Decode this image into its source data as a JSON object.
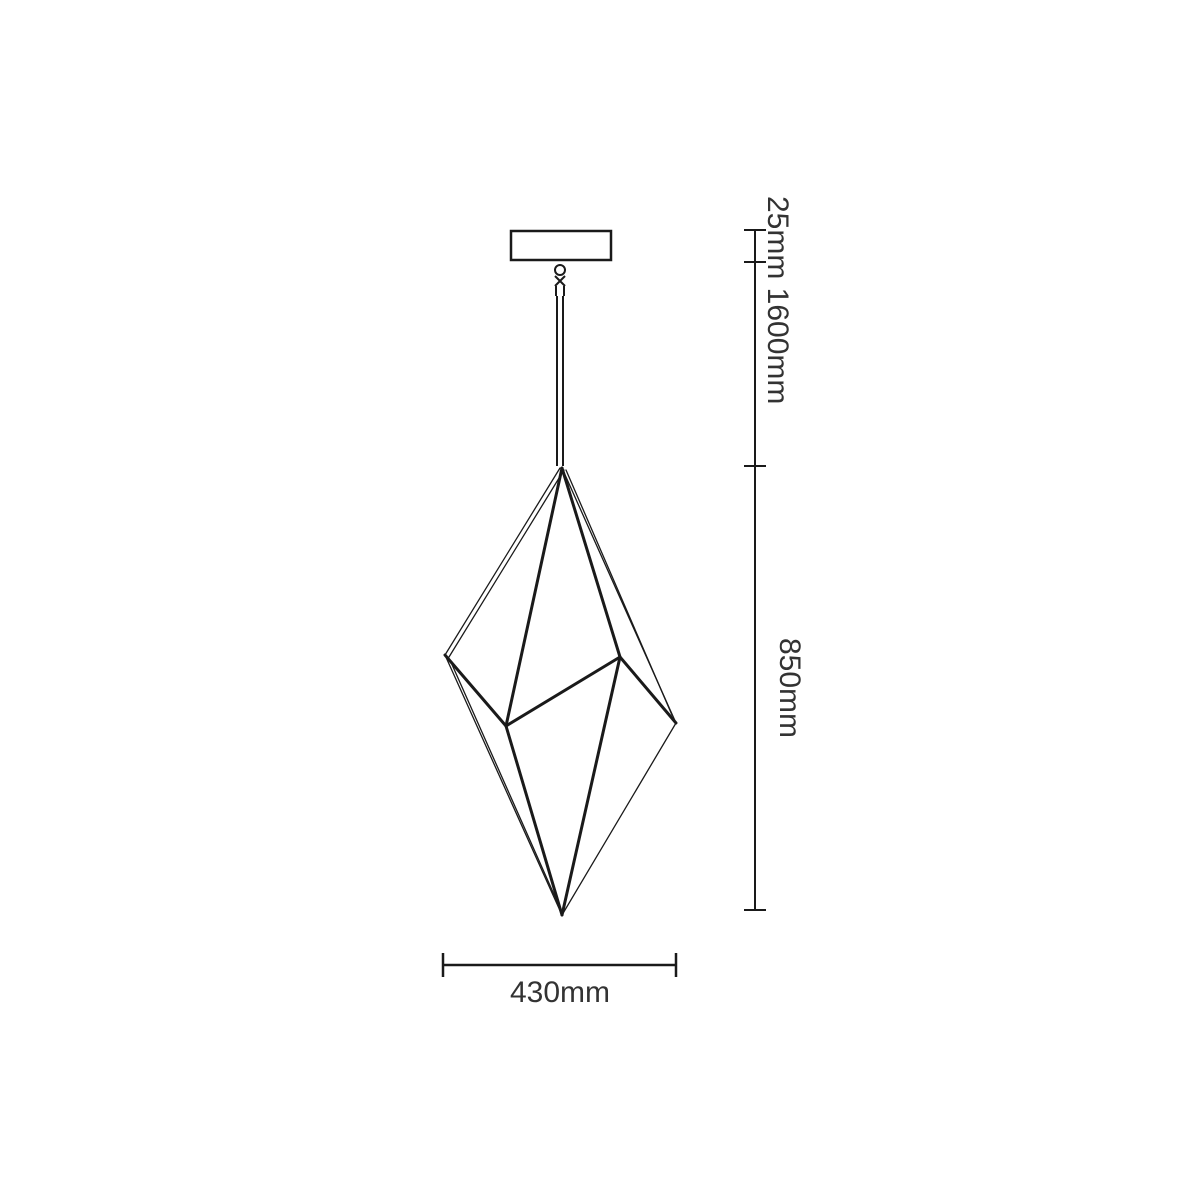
{
  "dimensions": {
    "canopy_and_cable": "25mm 1600mm",
    "body_height": "850mm",
    "width": "430mm"
  },
  "colors": {
    "line": "#1a1a1a",
    "text": "#333333",
    "background": "#ffffff"
  }
}
